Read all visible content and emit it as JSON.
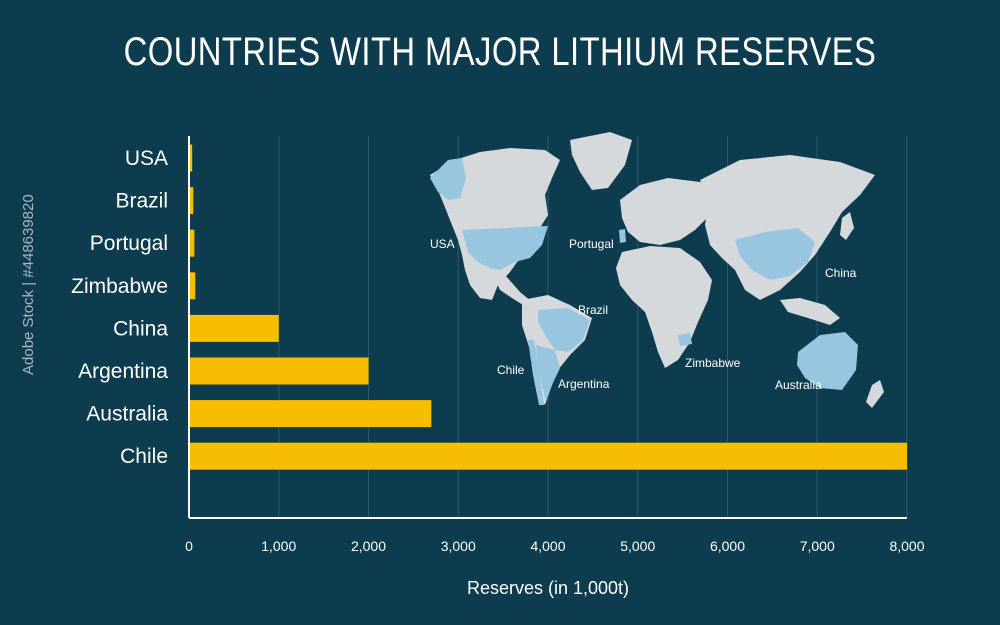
{
  "chart_data": {
    "type": "bar",
    "orientation": "horizontal",
    "title": "COUNTRIES WITH MAJOR LITHIUM RESERVES",
    "xlabel": "Reserves (in 1,000t)",
    "ylabel": "",
    "categories": [
      "USA",
      "Brazil",
      "Portugal",
      "Zimbabwe",
      "China",
      "Argentina",
      "Australia",
      "Chile"
    ],
    "values": [
      35,
      48,
      60,
      70,
      1000,
      2000,
      2700,
      8000
    ],
    "xlim": [
      0,
      8000
    ],
    "xticks": [
      0,
      1000,
      2000,
      3000,
      4000,
      5000,
      6000,
      7000,
      8000
    ],
    "xtick_labels": [
      "0",
      "1,000",
      "2,000",
      "3,000",
      "4,000",
      "5,000",
      "6,000",
      "7,000",
      "8,000"
    ],
    "grid": "vertical",
    "bar_color": "#f7bd00",
    "background_color": "#0e3c4f",
    "map": {
      "land_color": "#d6d9dc",
      "highlight_color": "#98c5e0",
      "labels": [
        "USA",
        "Portugal",
        "China",
        "Brazil",
        "Chile",
        "Argentina",
        "Zimbabwe",
        "Australia"
      ]
    }
  },
  "watermark": "Adobe Stock | #448639820"
}
